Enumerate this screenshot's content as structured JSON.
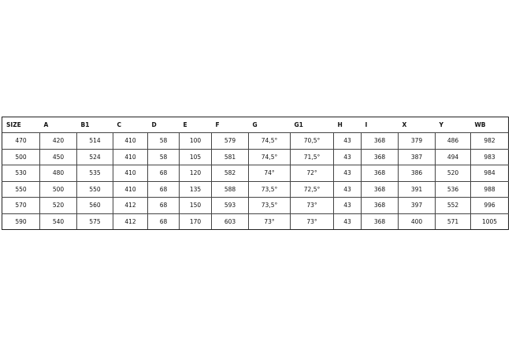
{
  "table": {
    "header": [
      "SIZE",
      "A",
      "B1",
      "C",
      "D",
      "E",
      "F",
      "G",
      "G1",
      "H",
      "I",
      "X",
      "Y",
      "WB"
    ],
    "rows": [
      [
        "470",
        "420",
        "514",
        "410",
        "58",
        "100",
        "579",
        "74,5°",
        "70,5°",
        "43",
        "368",
        "379",
        "486",
        "982"
      ],
      [
        "500",
        "450",
        "524",
        "410",
        "58",
        "105",
        "581",
        "74,5°",
        "71,5°",
        "43",
        "368",
        "387",
        "494",
        "983"
      ],
      [
        "530",
        "480",
        "535",
        "410",
        "68",
        "120",
        "582",
        "74°",
        "72°",
        "43",
        "368",
        "386",
        "520",
        "984"
      ],
      [
        "550",
        "500",
        "550",
        "410",
        "68",
        "135",
        "588",
        "73,5°",
        "72,5°",
        "43",
        "368",
        "391",
        "536",
        "988"
      ],
      [
        "570",
        "520",
        "560",
        "412",
        "68",
        "150",
        "593",
        "73,5°",
        "73°",
        "43",
        "368",
        "397",
        "552",
        "996"
      ],
      [
        "590",
        "540",
        "575",
        "412",
        "68",
        "170",
        "603",
        "73°",
        "73°",
        "43",
        "368",
        "400",
        "571",
        "1005"
      ]
    ]
  }
}
